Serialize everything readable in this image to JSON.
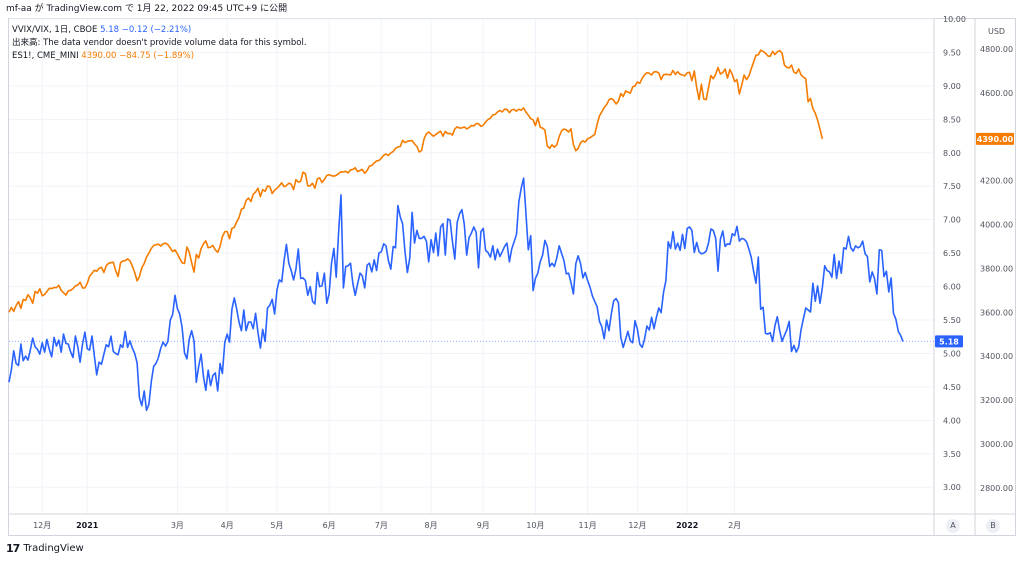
{
  "header": {
    "caption": "mf-aa が TradingView.com で 1月 22, 2022 09:45 UTC+9 に公開"
  },
  "legend": {
    "vix_symbol": "VVIX/VIX, 1日, CBOE",
    "vix_value": "5.18",
    "vix_change": "−0.12 (−2.21%)",
    "volume_note": "出来高: The data vendor doesn't provide volume data for this symbol.",
    "es_symbol": "ES1!, CME_MINI",
    "es_value": "4390.00",
    "es_change": "−84.75 (−1.89%)"
  },
  "axis_buttons": {
    "auto": "A",
    "log": "B"
  },
  "footer": {
    "brand": "TradingView",
    "logo": "17"
  },
  "colors": {
    "vvix_vix": "#2962ff",
    "es": "#f57c00",
    "grid": "#f0f3fa",
    "axis_text": "#50535e"
  },
  "chart_data": {
    "type": "line",
    "x_axis": {
      "labels": [
        "12月",
        "2021",
        "3月",
        "4月",
        "5月",
        "6月",
        "7月",
        "8月",
        "9月",
        "10月",
        "11月",
        "12月",
        "2022",
        "2月"
      ],
      "bold": [
        "2021",
        "2022"
      ],
      "label_index": [
        14,
        33,
        71,
        92,
        113,
        135,
        157,
        178,
        200,
        222,
        244,
        265,
        286,
        306
      ]
    },
    "axes": {
      "left_inner": {
        "ticks": [
          3.0,
          3.5,
          4.0,
          4.5,
          5.0,
          5.5,
          6.0,
          6.5,
          7.0,
          7.5,
          8.0,
          8.5,
          9.0,
          9.5,
          10.0
        ],
        "ylim": [
          2.6,
          10.0
        ]
      },
      "right": {
        "unit": "USD",
        "ticks": [
          2800,
          3000,
          3200,
          3400,
          3600,
          3800,
          4000,
          4200,
          4400,
          4600,
          4800
        ],
        "ylim": [
          2681,
          4936
        ]
      }
    },
    "series": [
      {
        "name": "VVIX/VIX",
        "axis": "left_inner",
        "last_value": "5.18",
        "values": [
          4.57,
          4.76,
          5.04,
          4.85,
          4.82,
          5.14,
          4.89,
          4.96,
          4.9,
          5.05,
          5.23,
          5.1,
          5.06,
          4.99,
          5.16,
          5.02,
          5.21,
          5.06,
          4.95,
          5.24,
          5.11,
          5.2,
          5.02,
          5.29,
          5.15,
          5.14,
          5.02,
          4.94,
          5.26,
          5.1,
          4.87,
          5.14,
          5.32,
          5.07,
          5.05,
          5.26,
          4.96,
          4.68,
          4.87,
          4.84,
          4.99,
          5.13,
          5.1,
          5.26,
          5.03,
          5.0,
          4.98,
          5.13,
          5.09,
          5.33,
          5.09,
          5.19,
          5.08,
          5.0,
          4.86,
          4.34,
          4.22,
          4.44,
          4.15,
          4.24,
          4.58,
          4.81,
          4.85,
          4.94,
          5.08,
          5.17,
          5.11,
          5.18,
          5.5,
          5.58,
          5.87,
          5.67,
          5.59,
          5.39,
          5.01,
          4.92,
          5.21,
          5.34,
          5.19,
          4.57,
          4.81,
          4.99,
          4.65,
          4.45,
          4.75,
          4.52,
          4.67,
          4.71,
          4.44,
          4.85,
          4.7,
          5.17,
          5.29,
          5.17,
          5.66,
          5.83,
          5.67,
          5.47,
          5.34,
          5.65,
          5.34,
          5.47,
          5.47,
          5.37,
          5.6,
          5.31,
          5.08,
          5.36,
          5.18,
          5.68,
          5.72,
          5.81,
          5.59,
          5.95,
          6.1,
          6.07,
          6.39,
          6.63,
          6.35,
          6.24,
          6.1,
          6.26,
          6.56,
          6.12,
          6.13,
          6.09,
          5.87,
          6.0,
          5.78,
          5.74,
          6.21,
          6.0,
          6.01,
          6.2,
          5.75,
          5.89,
          6.35,
          6.57,
          6.14,
          6.81,
          7.37,
          5.98,
          6.3,
          6.31,
          6.35,
          6.05,
          5.87,
          6.04,
          6.2,
          6.16,
          5.98,
          6.32,
          6.35,
          6.22,
          6.4,
          6.24,
          6.5,
          6.52,
          6.64,
          6.61,
          6.39,
          6.26,
          6.6,
          6.58,
          7.21,
          7.04,
          6.94,
          6.52,
          6.21,
          6.43,
          7.11,
          6.65,
          6.84,
          6.72,
          6.72,
          6.75,
          6.68,
          6.37,
          6.7,
          6.51,
          6.8,
          6.46,
          6.89,
          6.94,
          6.47,
          7.01,
          6.99,
          6.68,
          6.41,
          6.96,
          7.09,
          7.15,
          6.93,
          6.47,
          6.73,
          6.8,
          6.89,
          6.81,
          6.28,
          6.82,
          6.87,
          6.54,
          6.51,
          6.44,
          6.61,
          6.4,
          6.56,
          6.45,
          6.52,
          6.6,
          6.65,
          6.37,
          6.56,
          6.67,
          6.78,
          7.26,
          7.47,
          7.62,
          7.08,
          6.55,
          6.76,
          5.94,
          6.12,
          6.2,
          6.37,
          6.47,
          6.69,
          6.6,
          6.3,
          6.35,
          6.3,
          6.43,
          6.61,
          6.5,
          6.39,
          6.19,
          6.2,
          6.06,
          5.89,
          6.34,
          6.46,
          6.35,
          6.13,
          6.21,
          6.09,
          5.99,
          5.86,
          5.78,
          5.7,
          5.48,
          5.4,
          5.22,
          5.5,
          5.34,
          5.59,
          5.79,
          5.82,
          5.76,
          5.24,
          5.09,
          5.21,
          5.33,
          5.19,
          5.16,
          5.49,
          5.36,
          5.14,
          5.09,
          5.21,
          5.41,
          5.35,
          5.54,
          5.37,
          5.54,
          5.68,
          5.61,
          5.91,
          6.09,
          6.67,
          6.57,
          6.82,
          6.56,
          6.65,
          6.54,
          6.78,
          6.57,
          6.87,
          6.89,
          6.84,
          6.51,
          6.66,
          6.52,
          6.49,
          6.5,
          6.53,
          6.65,
          6.86,
          6.84,
          6.72,
          6.23,
          6.71,
          6.83,
          6.6,
          6.64,
          6.63,
          6.79,
          6.76,
          6.9,
          6.68,
          6.72,
          6.71,
          6.67,
          6.56,
          6.44,
          6.23,
          6.05,
          6.44,
          5.66,
          5.69,
          5.3,
          5.29,
          5.31,
          5.18,
          5.41,
          5.55,
          5.34,
          5.18,
          5.27,
          5.35,
          5.48,
          5.03,
          5.12,
          5.02,
          5.1,
          5.35,
          5.52,
          5.68,
          5.65,
          5.62,
          6.05,
          5.78,
          6.01,
          5.75,
          5.99,
          6.31,
          6.24,
          6.22,
          6.14,
          6.48,
          6.12,
          6.38,
          6.2,
          6.58,
          6.56,
          6.75,
          6.58,
          6.53,
          6.61,
          6.58,
          6.6,
          6.68,
          6.49,
          6.45,
          6.07,
          6.22,
          6.12,
          5.89,
          6.55,
          6.54,
          6.15,
          6.23,
          5.92,
          6.13,
          5.6,
          5.51,
          5.33,
          5.27,
          5.18
        ]
      },
      {
        "name": "ES1!",
        "axis": "right",
        "last_value": "4390.00",
        "values": [
          3600,
          3622,
          3604,
          3631,
          3648,
          3618,
          3658,
          3654,
          3680,
          3666,
          3641,
          3695,
          3687,
          3707,
          3675,
          3681,
          3694,
          3709,
          3708,
          3713,
          3712,
          3723,
          3700,
          3689,
          3678,
          3698,
          3700,
          3708,
          3720,
          3724,
          3737,
          3711,
          3711,
          3732,
          3764,
          3777,
          3791,
          3787,
          3800,
          3805,
          3781,
          3812,
          3823,
          3826,
          3828,
          3789,
          3763,
          3825,
          3834,
          3835,
          3843,
          3835,
          3811,
          3781,
          3743,
          3763,
          3802,
          3822,
          3852,
          3869,
          3891,
          3904,
          3908,
          3910,
          3902,
          3912,
          3915,
          3908,
          3893,
          3877,
          3884,
          3866,
          3845,
          3826,
          3822,
          3897,
          3874,
          3827,
          3783,
          3863,
          3847,
          3890,
          3912,
          3925,
          3894,
          3897,
          3904,
          3884,
          3873,
          3901,
          3945,
          3967,
          3968,
          3935,
          3982,
          3987,
          4011,
          4031,
          4069,
          4075,
          4109,
          4120,
          4104,
          4138,
          4148,
          4165,
          4127,
          4159,
          4151,
          4175,
          4173,
          4141,
          4156,
          4165,
          4176,
          4190,
          4172,
          4177,
          4188,
          4184,
          4159,
          4204,
          4193,
          4197,
          4238,
          4231,
          4175,
          4176,
          4188,
          4165,
          4207,
          4212,
          4191,
          4205,
          4223,
          4227,
          4222,
          4220,
          4224,
          4232,
          4240,
          4239,
          4242,
          4235,
          4249,
          4251,
          4258,
          4241,
          4246,
          4251,
          4233,
          4246,
          4266,
          4269,
          4280,
          4290,
          4291,
          4302,
          4315,
          4321,
          4314,
          4326,
          4333,
          4347,
          4353,
          4355,
          4383,
          4373,
          4379,
          4381,
          4382,
          4367,
          4355,
          4330,
          4337,
          4389,
          4413,
          4421,
          4411,
          4402,
          4410,
          4418,
          4425,
          4402,
          4424,
          4414,
          4415,
          4407,
          4435,
          4445,
          4439,
          4440,
          4444,
          4436,
          4441,
          4451,
          4449,
          4459,
          4459,
          4447,
          4452,
          4467,
          4478,
          4484,
          4499,
          4501,
          4513,
          4519,
          4513,
          4525,
          4524,
          4509,
          4522,
          4524,
          4516,
          4525,
          4520,
          4531,
          4511,
          4498,
          4482,
          4477,
          4450,
          4486,
          4443,
          4439,
          4430,
          4357,
          4347,
          4363,
          4352,
          4363,
          4400,
          4426,
          4435,
          4431,
          4421,
          4436,
          4364,
          4336,
          4346,
          4372,
          4381,
          4375,
          4390,
          4395,
          4403,
          4409,
          4456,
          4495,
          4513,
          4533,
          4546,
          4568,
          4574,
          4566,
          4549,
          4562,
          4596,
          4583,
          4608,
          4603,
          4598,
          4627,
          4631,
          4649,
          4643,
          4666,
          4682,
          4691,
          4689,
          4681,
          4695,
          4696,
          4690,
          4660,
          4682,
          4684,
          4683,
          4681,
          4702,
          4683,
          4696,
          4684,
          4681,
          4677,
          4691,
          4693,
          4655,
          4699,
          4624,
          4569,
          4639,
          4571,
          4569,
          4623,
          4678,
          4664,
          4685,
          4715,
          4685,
          4692,
          4708,
          4667,
          4706,
          4683,
          4651,
          4660,
          4594,
          4634,
          4681,
          4660,
          4676,
          4708,
          4740,
          4771,
          4773,
          4794,
          4788,
          4780,
          4768,
          4766,
          4789,
          4774,
          4787,
          4792,
          4780,
          4726,
          4716,
          4713,
          4726,
          4694,
          4688,
          4708,
          4682,
          4671,
          4664,
          4559,
          4574,
          4528,
          4507,
          4475,
          4434,
          4390
        ]
      }
    ]
  }
}
